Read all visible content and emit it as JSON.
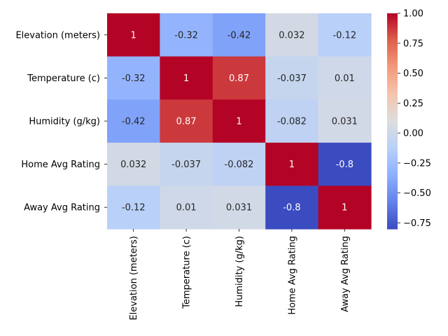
{
  "chart_data": {
    "type": "heatmap",
    "title": "",
    "xlabel": "",
    "ylabel": "",
    "x_labels": [
      "Elevation (meters)",
      "Temperature (c)",
      "Humidity (g/kg)",
      "Home Avg Rating",
      "Away Avg Rating"
    ],
    "y_labels": [
      "Elevation (meters)",
      "Temperature (c)",
      "Humidity (g/kg)",
      "Home Avg Rating",
      "Away Avg Rating"
    ],
    "values": [
      [
        1,
        -0.32,
        -0.42,
        0.032,
        -0.12
      ],
      [
        -0.32,
        1,
        0.87,
        -0.037,
        0.01
      ],
      [
        -0.42,
        0.87,
        1,
        -0.082,
        0.031
      ],
      [
        0.032,
        -0.037,
        -0.082,
        1,
        -0.8
      ],
      [
        -0.12,
        0.01,
        0.031,
        -0.8,
        1
      ]
    ],
    "cell_labels": [
      [
        "1",
        "-0.32",
        "-0.42",
        "0.032",
        "-0.12"
      ],
      [
        "-0.32",
        "1",
        "0.87",
        "-0.037",
        "0.01"
      ],
      [
        "-0.42",
        "0.87",
        "1",
        "-0.082",
        "0.031"
      ],
      [
        "0.032",
        "-0.037",
        "-0.082",
        "1",
        "-0.8"
      ],
      [
        "-0.12",
        "0.01",
        "0.031",
        "-0.8",
        "1"
      ]
    ],
    "colormap": "coolwarm",
    "vmin": -0.8,
    "vmax": 1.0,
    "colorbar_ticks": [
      1.0,
      0.75,
      0.5,
      0.25,
      0.0,
      -0.25,
      -0.5,
      -0.75
    ],
    "colorbar_tick_labels": [
      "1.00",
      "0.75",
      "0.50",
      "0.25",
      "0.00",
      "−0.25",
      "−0.50",
      "−0.75"
    ],
    "legend": "colorbar-right",
    "grid": false
  }
}
